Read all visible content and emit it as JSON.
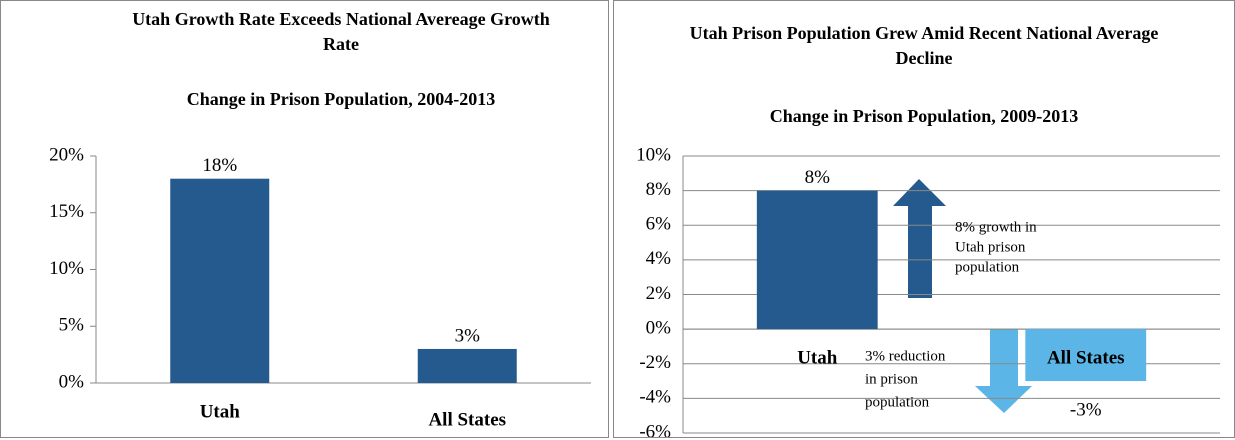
{
  "chart_data": [
    {
      "type": "bar",
      "title": "Utah Growth Rate Exceeds National Avereage Growth Rate",
      "subtitle": "Change in Prison Population, 2004-2013",
      "categories": [
        "Utah",
        "All States"
      ],
      "values": [
        18,
        3
      ],
      "value_labels": [
        "18%",
        "3%"
      ],
      "colors": [
        "#255a8e",
        "#255a8e"
      ],
      "ylim": [
        0,
        20
      ],
      "yticks": [
        {
          "value": 0,
          "label": "0%"
        },
        {
          "value": 5,
          "label": "5%"
        },
        {
          "value": 10,
          "label": "10%"
        },
        {
          "value": 15,
          "label": "15%"
        },
        {
          "value": 20,
          "label": "20%"
        }
      ],
      "grid": false
    },
    {
      "type": "bar",
      "title": "Utah Prison Population Grew Amid Recent National Average Decline",
      "subtitle": "Change in Prison Population, 2009-2013",
      "categories": [
        "Utah",
        "All States"
      ],
      "values": [
        8,
        -3
      ],
      "value_labels": [
        "8%",
        "-3%"
      ],
      "colors": [
        "#255a8e",
        "#5bb5e6"
      ],
      "ylim": [
        -6,
        10
      ],
      "yticks": [
        {
          "value": -6,
          "label": "-6%"
        },
        {
          "value": -4,
          "label": "-4%"
        },
        {
          "value": -2,
          "label": "-2%"
        },
        {
          "value": 0,
          "label": "0%"
        },
        {
          "value": 2,
          "label": "2%"
        },
        {
          "value": 4,
          "label": "4%"
        },
        {
          "value": 6,
          "label": "6%"
        },
        {
          "value": 8,
          "label": "8%"
        },
        {
          "value": 10,
          "label": "10%"
        }
      ],
      "grid": true,
      "annotations": [
        [
          "8% growth in",
          "Utah prison",
          "population"
        ],
        [
          "3% reduction",
          "in prison",
          "population"
        ]
      ]
    }
  ]
}
